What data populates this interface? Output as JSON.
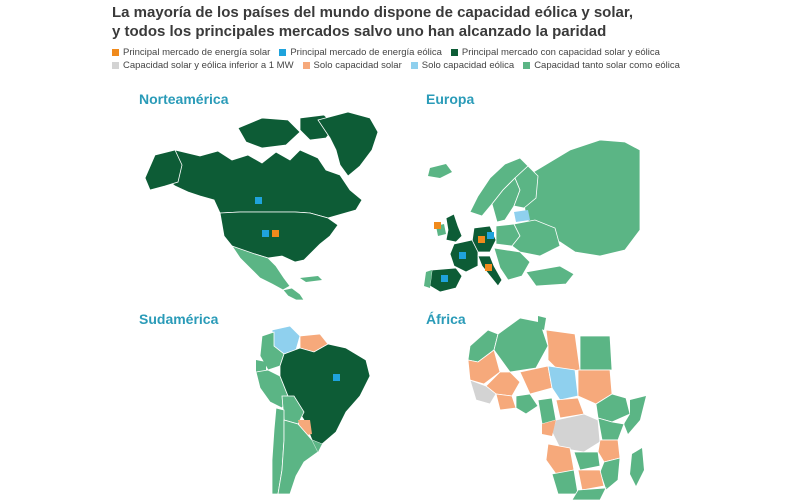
{
  "title": {
    "line1": "La mayoría de los países del mundo dispone de capacidad eólica y solar,",
    "line2": "y todos los principales mercados salvo uno han alcanzado la paridad"
  },
  "colors": {
    "solar_main": "#f08a1c",
    "wind_main": "#1fa3dc",
    "both_main": "#0d5c36",
    "under_1mw": "#d3d3d3",
    "solar_only": "#f6a97b",
    "wind_only": "#8fd0ee",
    "both": "#5bb585",
    "region_title": "#2a9bb8"
  },
  "legend": [
    {
      "label": "Principal mercado de energía solar",
      "color_key": "solar_main"
    },
    {
      "label": "Principal mercado de energía eólica",
      "color_key": "wind_main"
    },
    {
      "label": "Principal mercado con capacidad solar y eólica",
      "color_key": "both_main"
    },
    {
      "label": "Capacidad solar y eólica inferior a 1 MW",
      "color_key": "under_1mw"
    },
    {
      "label": "Solo capacidad solar",
      "color_key": "solar_only"
    },
    {
      "label": "Solo capacidad eólica",
      "color_key": "wind_only"
    },
    {
      "label": "Capacidad tanto solar como eólica",
      "color_key": "both"
    }
  ],
  "regions": {
    "north_america": "Norteamérica",
    "europe": "Europa",
    "south_america": "Sudamérica",
    "africa": "África"
  }
}
